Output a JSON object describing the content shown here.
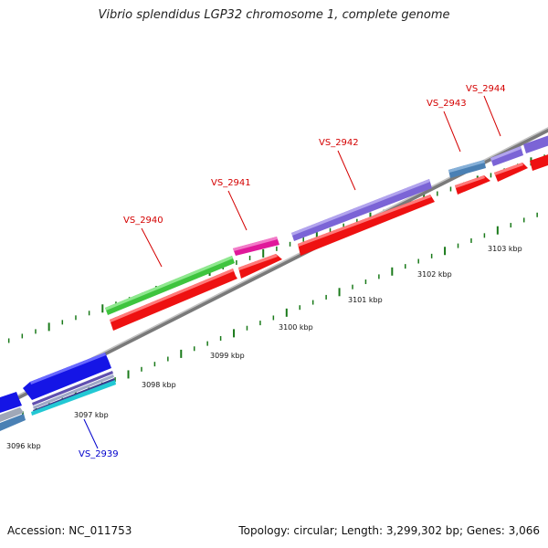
{
  "title": "Vibrio splendidus LGP32 chromosome 1, complete genome",
  "footer": {
    "accession": "Accession: NC_011753",
    "topology": "Topology: circular; Length: 3,299,302 bp; Genes: 3,066"
  },
  "colors": {
    "backbone": "#8a8a8a",
    "tick": "#1a7a1a",
    "label_red": "#d40000",
    "label_blue": "#0000cc"
  },
  "gene_labels": [
    {
      "id": "VS_2939",
      "color": "#0000cc"
    },
    {
      "id": "VS_2940",
      "color": "#d40000"
    },
    {
      "id": "VS_2941",
      "color": "#d40000"
    },
    {
      "id": "VS_2942",
      "color": "#d40000"
    },
    {
      "id": "VS_2943",
      "color": "#d40000"
    },
    {
      "id": "VS_2944",
      "color": "#d40000"
    }
  ],
  "kbp_labels": [
    "3096 kbp",
    "3097 kbp",
    "3098 kbp",
    "3099 kbp",
    "3100 kbp",
    "3101 kbp",
    "3102 kbp",
    "3103 kbp"
  ],
  "gene_colors": {
    "green": "#3ec43e",
    "magenta": "#e0199a",
    "purple": "#7b64d6",
    "steelblue": "#4a80b4",
    "red": "#ee1111",
    "blue": "#1515e6",
    "cyan": "#22c8d4",
    "slate": "#7080a0"
  }
}
